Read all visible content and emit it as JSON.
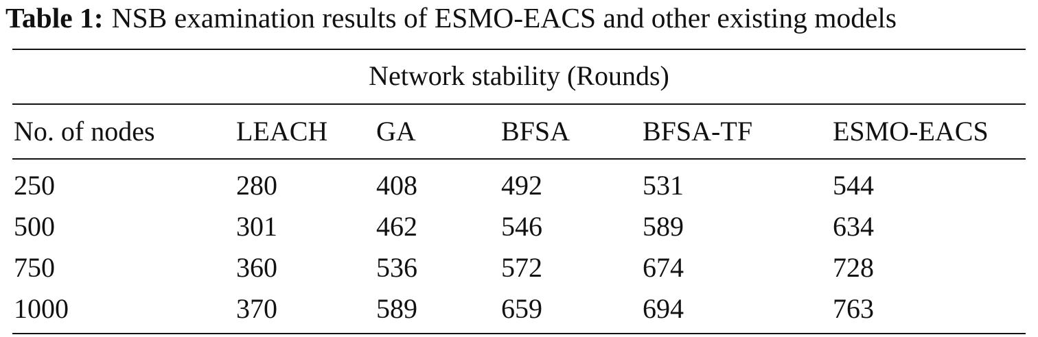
{
  "caption": {
    "label": "Table 1:",
    "text": "NSB examination results of ESMO-EACS and other existing models"
  },
  "table": {
    "group_header": "Network stability (Rounds)",
    "columns": [
      "No. of nodes",
      "LEACH",
      "GA",
      "BFSA",
      "BFSA-TF",
      "ESMO-EACS"
    ],
    "rows": [
      [
        "250",
        "280",
        "408",
        "492",
        "531",
        "544"
      ],
      [
        "500",
        "301",
        "462",
        "546",
        "589",
        "634"
      ],
      [
        "750",
        "360",
        "536",
        "572",
        "674",
        "728"
      ],
      [
        "1000",
        "370",
        "589",
        "659",
        "694",
        "763"
      ]
    ]
  }
}
